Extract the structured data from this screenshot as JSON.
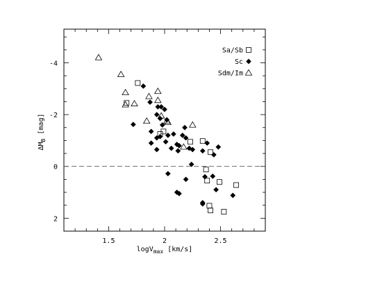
{
  "chart_data": {
    "type": "scatter",
    "xlabel": "logV",
    "xlabel_sub": "max",
    "xlabel_unit": " [km/s]",
    "ylabel": "ΔM",
    "ylabel_sub": "B",
    "ylabel_unit": " [mag]",
    "xlim": [
      1.1,
      2.9
    ],
    "ylim": [
      2.5,
      -5.3
    ],
    "x_ticks": [
      1.5,
      2,
      2.5
    ],
    "x_tick_labels": [
      "1.5",
      "2",
      "2.5"
    ],
    "y_ticks": [
      -4,
      -2,
      0,
      2
    ],
    "y_tick_labels": [
      "-4",
      "-2",
      "0",
      "2"
    ],
    "reference_line": {
      "y": 0,
      "style": "dashed"
    },
    "legend_position": "top-right",
    "series": [
      {
        "name": "Sa/Sb",
        "marker": "open-square",
        "points": [
          [
            1.76,
            -3.22
          ],
          [
            1.66,
            -2.45
          ],
          [
            1.99,
            -1.35
          ],
          [
            1.96,
            -1.25
          ],
          [
            2.23,
            -0.95
          ],
          [
            2.34,
            -0.98
          ],
          [
            2.41,
            -0.55
          ],
          [
            2.37,
            0.12
          ],
          [
            2.38,
            0.55
          ],
          [
            2.49,
            0.6
          ],
          [
            2.64,
            0.72
          ],
          [
            2.4,
            1.52
          ],
          [
            2.41,
            1.7
          ],
          [
            2.53,
            1.75
          ]
        ]
      },
      {
        "name": "Sc",
        "marker": "filled-diamond",
        "points": [
          [
            1.81,
            -3.1
          ],
          [
            1.87,
            -2.48
          ],
          [
            1.94,
            -2.3
          ],
          [
            1.97,
            -2.3
          ],
          [
            2.0,
            -2.2
          ],
          [
            1.93,
            -2.0
          ],
          [
            1.96,
            -1.85
          ],
          [
            2.02,
            -1.8
          ],
          [
            1.72,
            -1.62
          ],
          [
            1.98,
            -1.6
          ],
          [
            1.88,
            -1.35
          ],
          [
            2.18,
            -1.5
          ],
          [
            1.93,
            -1.1
          ],
          [
            1.96,
            -1.15
          ],
          [
            2.03,
            -1.2
          ],
          [
            2.08,
            -1.25
          ],
          [
            2.16,
            -1.2
          ],
          [
            2.19,
            -1.1
          ],
          [
            1.88,
            -0.9
          ],
          [
            2.01,
            -0.95
          ],
          [
            2.11,
            -0.85
          ],
          [
            2.13,
            -0.8
          ],
          [
            1.93,
            -0.65
          ],
          [
            2.06,
            -0.7
          ],
          [
            2.12,
            -0.6
          ],
          [
            2.22,
            -0.7
          ],
          [
            2.25,
            -0.65
          ],
          [
            2.34,
            -0.6
          ],
          [
            2.38,
            -0.9
          ],
          [
            2.44,
            -0.45
          ],
          [
            2.24,
            -0.08
          ],
          [
            2.03,
            0.28
          ],
          [
            2.36,
            0.4
          ],
          [
            2.43,
            0.38
          ],
          [
            2.19,
            0.5
          ],
          [
            2.46,
            0.9
          ],
          [
            2.11,
            1.0
          ],
          [
            2.13,
            1.05
          ],
          [
            2.34,
            1.4
          ],
          [
            2.34,
            1.45
          ],
          [
            2.61,
            1.12
          ],
          [
            2.48,
            -0.75
          ]
        ]
      },
      {
        "name": "Sdm/Im",
        "marker": "open-triangle",
        "points": [
          [
            1.41,
            -4.2
          ],
          [
            1.61,
            -3.55
          ],
          [
            1.65,
            -2.85
          ],
          [
            1.65,
            -2.38
          ],
          [
            1.73,
            -2.42
          ],
          [
            1.86,
            -2.7
          ],
          [
            1.94,
            -2.9
          ],
          [
            1.94,
            -2.55
          ],
          [
            1.84,
            -1.75
          ],
          [
            1.97,
            -1.95
          ],
          [
            2.02,
            -1.75
          ],
          [
            2.03,
            -1.7
          ],
          [
            2.25,
            -1.6
          ],
          [
            2.17,
            -0.75
          ]
        ]
      }
    ]
  },
  "colors": {
    "axis": "#000000",
    "marker": "#000000",
    "refline": "#555555"
  }
}
